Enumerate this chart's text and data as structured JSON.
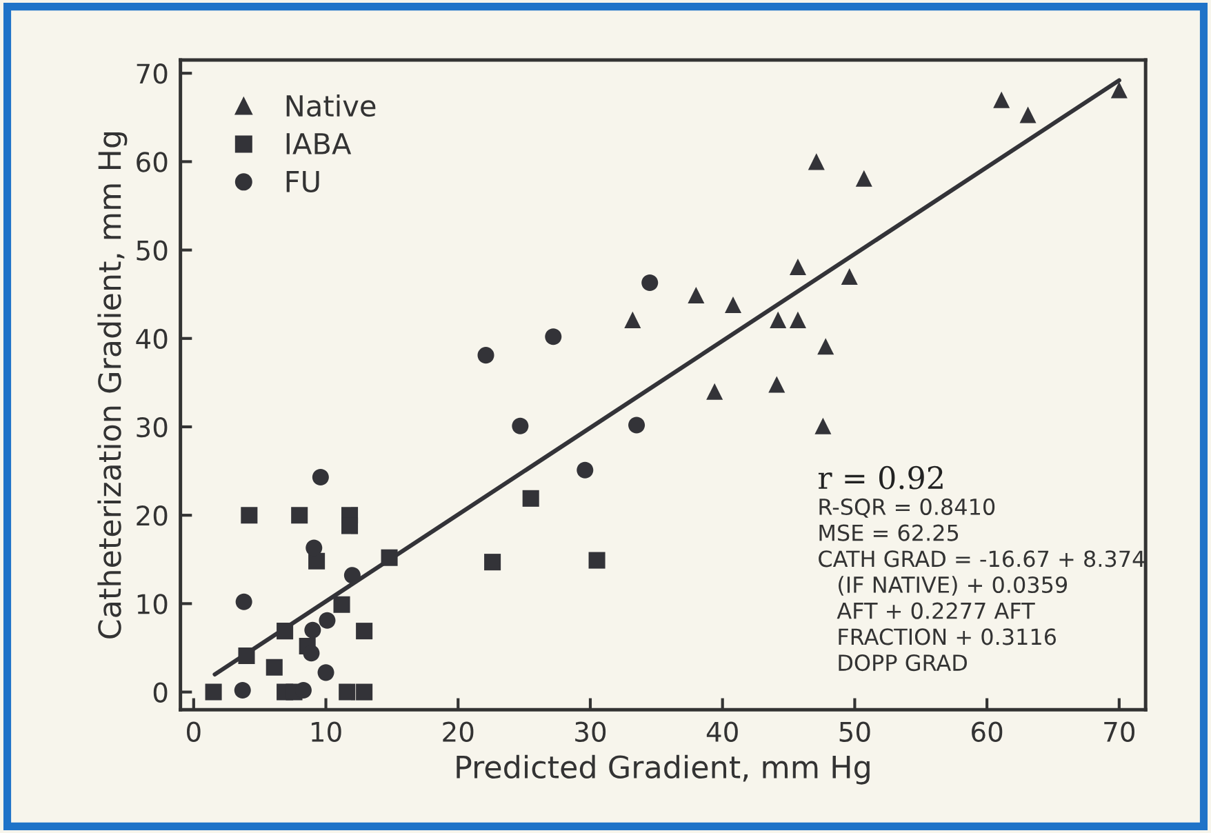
{
  "chart_data": {
    "type": "scatter",
    "xlabel": "Predicted Gradient, mm Hg",
    "ylabel": "Catheterization Gradient, mm Hg",
    "xlim": [
      -1,
      72
    ],
    "ylim": [
      -2,
      71.5
    ],
    "xticks": [
      0,
      10,
      20,
      30,
      40,
      50,
      60,
      70
    ],
    "yticks": [
      0,
      10,
      20,
      30,
      40,
      50,
      60,
      70
    ],
    "grid": false,
    "legend": "top left",
    "series": [
      {
        "name": "Native",
        "color": "#333338",
        "marker": "triangle",
        "x": [
          61.1,
          63.1,
          70,
          47.1,
          50.7,
          45.7,
          49.6,
          38.0,
          40.8,
          33.2,
          44.2,
          45.7,
          47.8,
          39.4,
          44.1,
          47.6
        ],
        "values": [
          67.0,
          65.3,
          68.1,
          60,
          58.1,
          48.1,
          47.0,
          44.9,
          43.8,
          42.1,
          42.1,
          42.1,
          39.1,
          34.0,
          34.8,
          30.1
        ]
      },
      {
        "name": "IABA",
        "color": "#333338",
        "marker": "square",
        "x": [
          25.5,
          22.6,
          30.5,
          4.2,
          8.0,
          11.8,
          11.8,
          9.3,
          14.8,
          11.2,
          12.9,
          6.9,
          4.1,
          4.0,
          8.6,
          6.1,
          1.5,
          6.9,
          7.6,
          11.6,
          12.9
        ],
        "values": [
          21.9,
          14.7,
          14.9,
          20,
          20,
          20,
          18.8,
          14.8,
          15.2,
          9.9,
          6.9,
          6.9,
          null,
          4.1,
          5.2,
          2.8,
          0,
          0,
          0,
          0,
          0
        ]
      },
      {
        "name": "FU",
        "color": "#333338",
        "marker": "circle",
        "x": [
          34.5,
          33.5,
          27.2,
          22.1,
          24.7,
          29.6,
          9.6,
          9.1,
          3.8,
          12.0,
          10.1,
          9.0,
          8.9,
          10.0,
          3.7,
          8.3
        ],
        "values": [
          46.3,
          30.2,
          40.2,
          38.1,
          30.1,
          25.1,
          24.3,
          16.3,
          10.2,
          13.2,
          8.1,
          7.0,
          4.4,
          2.2,
          0.2,
          0.2
        ]
      },
      {
        "type": "line",
        "color": "#333338",
        "line_style": "solid",
        "x": [
          1.6,
          70
        ],
        "values": [
          2.0,
          69.2
        ]
      }
    ],
    "annotations": [
      "r = 0.92",
      "R-SQR = 0.8410",
      "MSE = 62.25",
      "CATH GRAD = -16.67 + 8.374",
      "(IF NATIVE) + 0.0359",
      "AFT + 0.2277 AFT",
      "FRACTION + 0.3116",
      "DOPP GRAD"
    ]
  }
}
